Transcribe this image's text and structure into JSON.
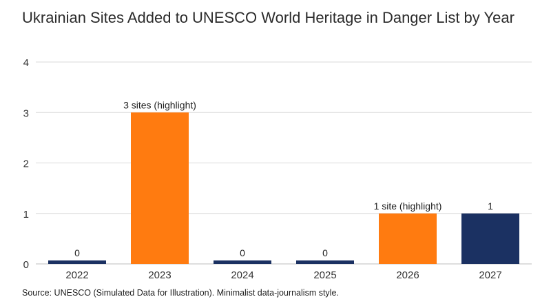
{
  "chart_data": {
    "type": "bar",
    "title": "Ukrainian Sites Added to UNESCO World Heritage in Danger List by Year",
    "categories": [
      "2022",
      "2023",
      "2024",
      "2025",
      "2026",
      "2027"
    ],
    "values": [
      0,
      3,
      0,
      0,
      1,
      1
    ],
    "data_labels": [
      "0",
      "3 sites (highlight)",
      "0",
      "0",
      "1 site (highlight)",
      "1"
    ],
    "highlighted": [
      false,
      true,
      false,
      false,
      true,
      false
    ],
    "ylim": [
      0,
      4
    ],
    "yticks": [
      "0",
      "1",
      "2",
      "3",
      "4"
    ],
    "xlabel": "",
    "ylabel": "",
    "grid": true,
    "colors": {
      "base": "#1b3162",
      "highlight": "#ff7b10",
      "grid": "#d9d9d9",
      "axis": "#bdbdbd"
    }
  },
  "footer": {
    "source": "Source: UNESCO (Simulated Data for Illustration). Minimalist data-journalism style."
  }
}
